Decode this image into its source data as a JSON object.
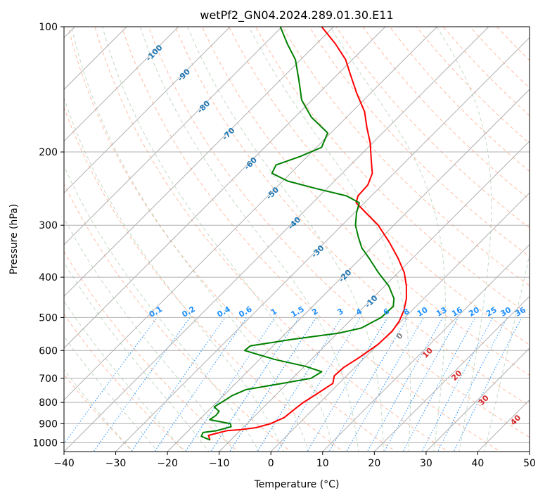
{
  "chart_data": {
    "type": "line",
    "title": "wetPf2_GN04.2024.289.01.30.E11",
    "xlabel": "Temperature (°C)",
    "ylabel": "Pressure (hPa)",
    "xlim": [
      -40,
      50
    ],
    "ylim": [
      1050,
      100
    ],
    "y_scale": "log",
    "skew": "skew-T 45°",
    "x_ticks": [
      "−40",
      "−30",
      "−20",
      "−10",
      "0",
      "10",
      "20",
      "30",
      "40",
      "50"
    ],
    "y_ticks": [
      "100",
      "200",
      "300",
      "400",
      "500",
      "600",
      "700",
      "800",
      "900",
      "1000"
    ],
    "grid": true,
    "colors": {
      "temperature": "#ff0000",
      "dewpoint": "#008000",
      "dry_adiabat": "#ffa07a",
      "moist_adiabat": "#8fbc8f",
      "mixing_ratio": "#1e90ff",
      "isotherm_grid": "#b0b0b0",
      "isotherm_label": "#1f77b4",
      "wetbulb_label": "#d62728"
    },
    "series": [
      {
        "key": "temperature",
        "color": "#ff0000",
        "points": [
          {
            "p": 985,
            "t": -14.0
          },
          {
            "p": 960,
            "t": -15.2
          },
          {
            "p": 935,
            "t": -12.5
          },
          {
            "p": 930,
            "t": -10.0
          },
          {
            "p": 920,
            "t": -7.5
          },
          {
            "p": 900,
            "t": -5.5
          },
          {
            "p": 870,
            "t": -4.0
          },
          {
            "p": 830,
            "t": -3.6
          },
          {
            "p": 800,
            "t": -3.2
          },
          {
            "p": 760,
            "t": -2.2
          },
          {
            "p": 720,
            "t": -1.2
          },
          {
            "p": 690,
            "t": -2.4
          },
          {
            "p": 660,
            "t": -2.2
          },
          {
            "p": 620,
            "t": -1.0
          },
          {
            "p": 580,
            "t": 0.0
          },
          {
            "p": 540,
            "t": 0.2
          },
          {
            "p": 510,
            "t": -0.4
          },
          {
            "p": 480,
            "t": -1.6
          },
          {
            "p": 450,
            "t": -3.4
          },
          {
            "p": 420,
            "t": -5.8
          },
          {
            "p": 390,
            "t": -8.8
          },
          {
            "p": 360,
            "t": -12.8
          },
          {
            "p": 330,
            "t": -17.5
          },
          {
            "p": 300,
            "t": -23.0
          },
          {
            "p": 280,
            "t": -27.8
          },
          {
            "p": 265,
            "t": -31.6
          },
          {
            "p": 255,
            "t": -32.6
          },
          {
            "p": 240,
            "t": -32.8
          },
          {
            "p": 225,
            "t": -34.2
          },
          {
            "p": 210,
            "t": -36.8
          },
          {
            "p": 190,
            "t": -40.5
          },
          {
            "p": 175,
            "t": -44.0
          },
          {
            "p": 160,
            "t": -47.6
          },
          {
            "p": 145,
            "t": -52.5
          },
          {
            "p": 130,
            "t": -57.6
          },
          {
            "p": 120,
            "t": -61.3
          },
          {
            "p": 110,
            "t": -66.3
          },
          {
            "p": 100,
            "t": -72.3
          }
        ]
      },
      {
        "key": "dewpoint",
        "color": "#008000",
        "points": [
          {
            "p": 985,
            "t": -14.0
          },
          {
            "p": 965,
            "t": -16.4
          },
          {
            "p": 945,
            "t": -16.8
          },
          {
            "p": 935,
            "t": -14.5
          },
          {
            "p": 915,
            "t": -12.5
          },
          {
            "p": 900,
            "t": -13.2
          },
          {
            "p": 880,
            "t": -18.0
          },
          {
            "p": 860,
            "t": -17.6
          },
          {
            "p": 840,
            "t": -17.8
          },
          {
            "p": 820,
            "t": -19.6
          },
          {
            "p": 790,
            "t": -18.8
          },
          {
            "p": 770,
            "t": -18.3
          },
          {
            "p": 745,
            "t": -16.8
          },
          {
            "p": 720,
            "t": -11.0
          },
          {
            "p": 700,
            "t": -6.4
          },
          {
            "p": 675,
            "t": -5.6
          },
          {
            "p": 655,
            "t": -9.8
          },
          {
            "p": 630,
            "t": -17.2
          },
          {
            "p": 600,
            "t": -24.6
          },
          {
            "p": 585,
            "t": -24.4
          },
          {
            "p": 565,
            "t": -17.8
          },
          {
            "p": 545,
            "t": -9.8
          },
          {
            "p": 530,
            "t": -6.4
          },
          {
            "p": 500,
            "t": -4.6
          },
          {
            "p": 470,
            "t": -4.4
          },
          {
            "p": 450,
            "t": -5.8
          },
          {
            "p": 420,
            "t": -9.2
          },
          {
            "p": 390,
            "t": -13.8
          },
          {
            "p": 360,
            "t": -18.4
          },
          {
            "p": 340,
            "t": -21.8
          },
          {
            "p": 320,
            "t": -24.6
          },
          {
            "p": 300,
            "t": -27.4
          },
          {
            "p": 280,
            "t": -29.6
          },
          {
            "p": 265,
            "t": -31.0
          },
          {
            "p": 255,
            "t": -34.8
          },
          {
            "p": 245,
            "t": -42.0
          },
          {
            "p": 235,
            "t": -49.0
          },
          {
            "p": 225,
            "t": -53.6
          },
          {
            "p": 215,
            "t": -54.4
          },
          {
            "p": 205,
            "t": -51.4
          },
          {
            "p": 195,
            "t": -49.0
          },
          {
            "p": 180,
            "t": -50.6
          },
          {
            "p": 165,
            "t": -56.8
          },
          {
            "p": 150,
            "t": -62.0
          },
          {
            "p": 135,
            "t": -66.2
          },
          {
            "p": 120,
            "t": -71.0
          },
          {
            "p": 110,
            "t": -75.6
          },
          {
            "p": 100,
            "t": -80.3
          }
        ]
      }
    ],
    "isotherm_labels": [
      "-100",
      "-90",
      "-80",
      "-70",
      "-60",
      "-50",
      "-40",
      "-30",
      "-20",
      "-10"
    ],
    "isotherm_label_values": [
      -100,
      -90,
      -80,
      -70,
      -60,
      -50,
      -40,
      -30,
      -20,
      -10
    ],
    "mixing_ratio_labels": [
      "0.1",
      "0.2",
      "0.4",
      "0.6",
      "1",
      "1.5",
      "2",
      "3",
      "4",
      "6",
      "8",
      "10",
      "13",
      "16",
      "20",
      "25",
      "30",
      "36"
    ],
    "mixing_ratio_values": [
      0.1,
      0.2,
      0.4,
      0.6,
      1,
      1.5,
      2,
      3,
      4,
      6,
      8,
      10,
      13,
      16,
      20,
      25,
      30,
      36
    ],
    "freezing_label": "0",
    "wetbulb_labels": [
      "10",
      "20",
      "30",
      "40"
    ],
    "wetbulb_values": [
      10,
      20,
      30,
      40
    ]
  }
}
